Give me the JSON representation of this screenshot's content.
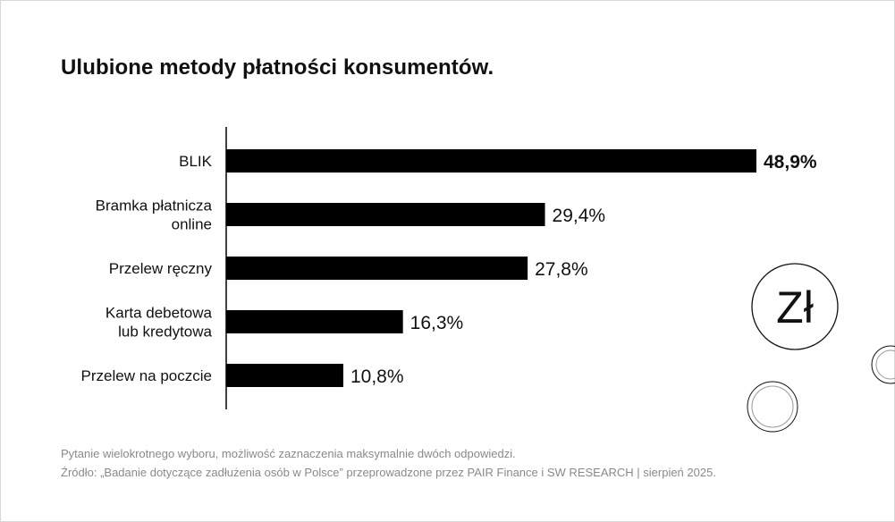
{
  "title": "Ulubione metody płatności konsumentów.",
  "chart_data": {
    "type": "bar",
    "orientation": "horizontal",
    "categories": [
      [
        "BLIK"
      ],
      [
        "Bramka płatnicza",
        "online"
      ],
      [
        "Przelew ręczny"
      ],
      [
        "Karta debetowa",
        "lub kredytowa"
      ],
      [
        "Przelew na poczcie"
      ]
    ],
    "values": [
      48.9,
      29.4,
      27.8,
      16.3,
      10.8
    ],
    "value_labels": [
      "48,9%",
      "29,4%",
      "27,8%",
      "16,3%",
      "10,8%"
    ],
    "highlight_index": 0,
    "xlim": [
      0,
      50
    ],
    "bar_color": "#000000",
    "grid": false,
    "legend": "none"
  },
  "decoration": {
    "currency_symbol": "Zł"
  },
  "footnotes": {
    "question": "Pytanie wielokrotnego wyboru, możliwość zaznaczenia maksymalnie dwóch odpowiedzi.",
    "source": "Źródło: „Badanie dotyczące zadłużenia osób w Polsce” przeprowadzone przez PAIR Finance i SW RESEARCH | sierpień 2025."
  }
}
